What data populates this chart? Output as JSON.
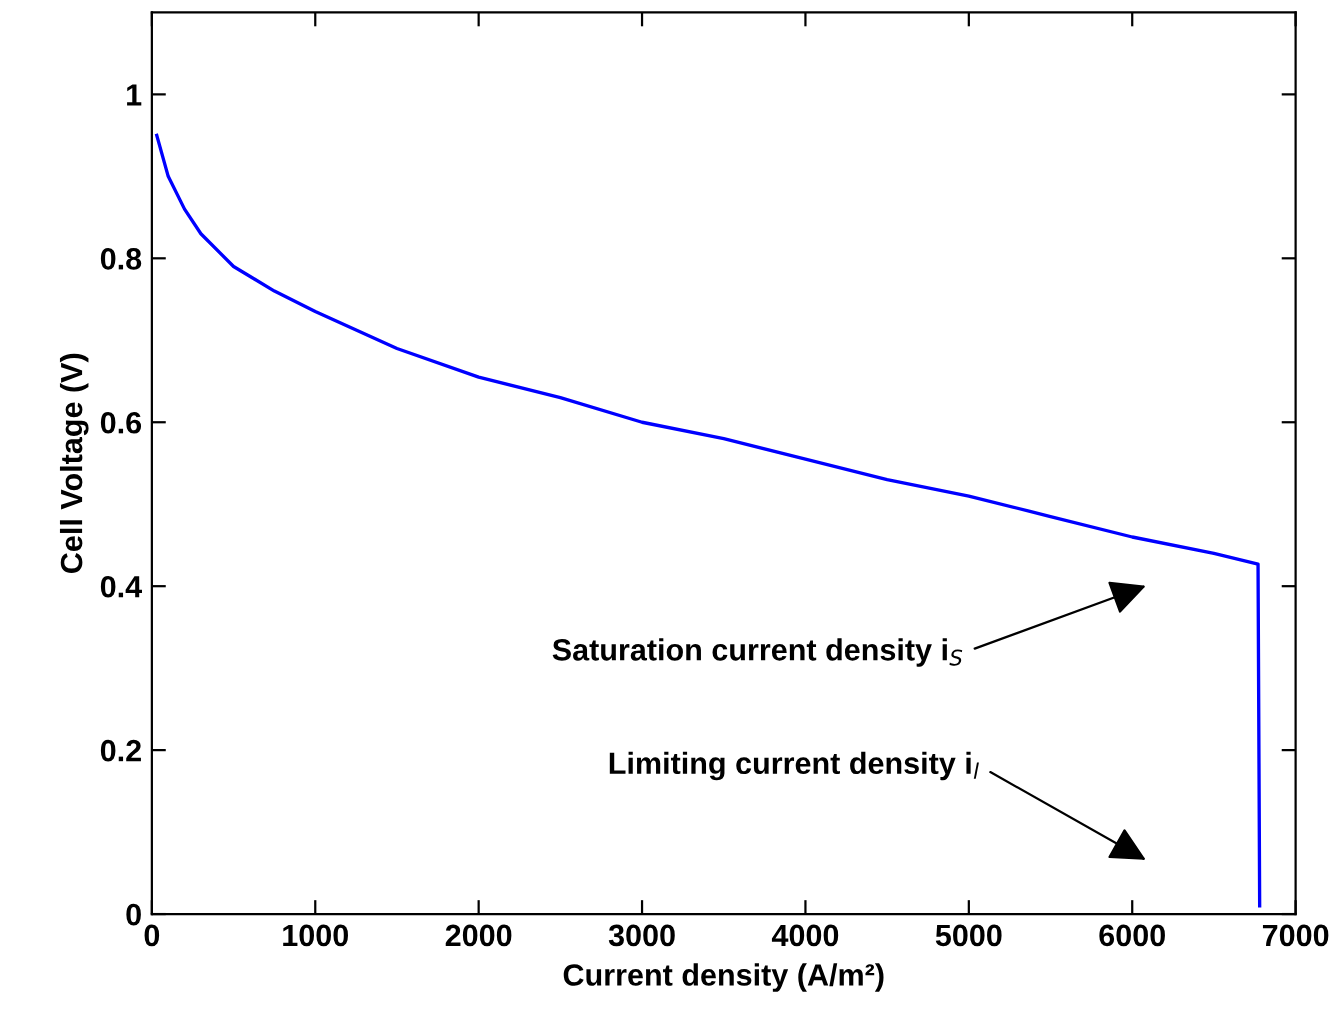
{
  "chart_data": {
    "type": "line",
    "xlabel": "Current density (A/m²)",
    "ylabel": "Cell Voltage (V)",
    "x": [
      30,
      100,
      200,
      300,
      500,
      750,
      1000,
      1500,
      2000,
      2500,
      3000,
      3500,
      4000,
      4500,
      5000,
      5500,
      6000,
      6500,
      6770,
      6780
    ],
    "series": [
      {
        "color": "#0000ff",
        "values": [
          0.95,
          0.9,
          0.86,
          0.83,
          0.79,
          0.76,
          0.735,
          0.69,
          0.655,
          0.63,
          0.6,
          0.58,
          0.555,
          0.53,
          0.51,
          0.485,
          0.46,
          0.44,
          0.427,
          0.01
        ]
      }
    ],
    "xlim": [
      0,
      7000
    ],
    "ylim": [
      0,
      1.1
    ],
    "xticks": [
      0,
      1000,
      2000,
      3000,
      4000,
      5000,
      6000,
      7000
    ],
    "yticks": [
      0,
      0.2,
      0.4,
      0.6,
      0.8,
      1
    ],
    "grid": false,
    "legend": false,
    "marker": "none",
    "line_style": "solid",
    "annotations": [
      "Saturation current density i$_{S}$",
      "Limiting current density i$_{l}$"
    ]
  }
}
